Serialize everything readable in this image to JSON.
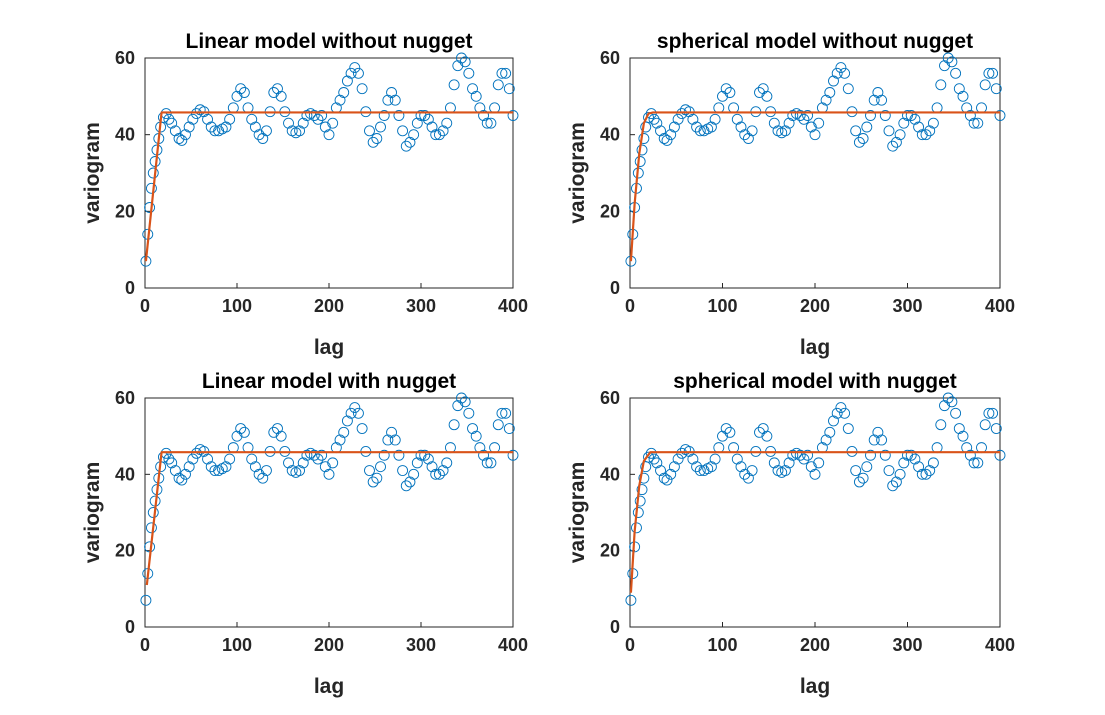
{
  "chart_data": [
    {
      "type": "scatter",
      "title": "Linear model without nugget",
      "xlabel": "lag",
      "ylabel": "variogram",
      "xlim": [
        0,
        400
      ],
      "ylim": [
        0,
        60
      ],
      "xticks": [
        0,
        100,
        200,
        300,
        400
      ],
      "yticks": [
        0,
        20,
        40,
        60
      ],
      "series": [
        {
          "type": "scatter",
          "color": "#0072BD",
          "x": [
            1,
            3,
            5,
            7,
            9,
            11,
            13,
            15,
            17,
            20,
            23,
            26,
            29,
            33,
            37,
            40,
            44,
            48,
            52,
            56,
            60,
            64,
            68,
            72,
            76,
            80,
            84,
            88,
            92,
            96,
            100,
            104,
            108,
            112,
            116,
            120,
            124,
            128,
            132,
            136,
            140,
            144,
            148,
            152,
            156,
            160,
            164,
            168,
            172,
            176,
            180,
            184,
            188,
            192,
            196,
            200,
            204,
            208,
            212,
            216,
            220,
            224,
            228,
            232,
            236,
            240,
            244,
            248,
            252,
            256,
            260,
            264,
            268,
            272,
            276,
            280,
            284,
            288,
            292,
            296,
            300,
            304,
            308,
            312,
            316,
            320,
            324,
            328,
            332,
            336,
            340,
            344,
            348,
            352,
            356,
            360,
            364,
            368,
            372,
            376,
            380,
            384,
            388,
            392,
            396,
            400
          ],
          "values": [
            7,
            14,
            21,
            26,
            30,
            33,
            36,
            39,
            42,
            44.5,
            45.5,
            44,
            43,
            41,
            39,
            38.5,
            40,
            42,
            44,
            45.5,
            46.5,
            46,
            44,
            42,
            41,
            41,
            41.5,
            42,
            44,
            47,
            50,
            52,
            51,
            47,
            44,
            42,
            40,
            39,
            41,
            46,
            51,
            52,
            50,
            46,
            43,
            41,
            40.5,
            41,
            43,
            45,
            45.5,
            45,
            44,
            45,
            42,
            40,
            43,
            47,
            49,
            51,
            54,
            56,
            57.5,
            56,
            52,
            46,
            41,
            38,
            39,
            42,
            45,
            49,
            51,
            49,
            45,
            41,
            37,
            38,
            40,
            43,
            45,
            45,
            44,
            42,
            40,
            40,
            41,
            43,
            47,
            53,
            58,
            60,
            59,
            56,
            52,
            50,
            47,
            45,
            43,
            43,
            47,
            53,
            56,
            56,
            52,
            45
          ]
        },
        {
          "type": "line",
          "color": "#D95319",
          "x": [
            1,
            18,
            400
          ],
          "values": [
            7,
            45.8,
            45.8
          ]
        }
      ]
    },
    {
      "type": "scatter",
      "title": "spherical model without nugget",
      "xlabel": "lag",
      "ylabel": "variogram",
      "xlim": [
        0,
        400
      ],
      "ylim": [
        0,
        60
      ],
      "xticks": [
        0,
        100,
        200,
        300,
        400
      ],
      "yticks": [
        0,
        20,
        40,
        60
      ],
      "series": [
        {
          "type": "scatter",
          "color": "#0072BD",
          "x": [
            1,
            3,
            5,
            7,
            9,
            11,
            13,
            15,
            17,
            20,
            23,
            26,
            29,
            33,
            37,
            40,
            44,
            48,
            52,
            56,
            60,
            64,
            68,
            72,
            76,
            80,
            84,
            88,
            92,
            96,
            100,
            104,
            108,
            112,
            116,
            120,
            124,
            128,
            132,
            136,
            140,
            144,
            148,
            152,
            156,
            160,
            164,
            168,
            172,
            176,
            180,
            184,
            188,
            192,
            196,
            200,
            204,
            208,
            212,
            216,
            220,
            224,
            228,
            232,
            236,
            240,
            244,
            248,
            252,
            256,
            260,
            264,
            268,
            272,
            276,
            280,
            284,
            288,
            292,
            296,
            300,
            304,
            308,
            312,
            316,
            320,
            324,
            328,
            332,
            336,
            340,
            344,
            348,
            352,
            356,
            360,
            364,
            368,
            372,
            376,
            380,
            384,
            388,
            392,
            396,
            400
          ],
          "values": [
            7,
            14,
            21,
            26,
            30,
            33,
            36,
            39,
            42,
            44.5,
            45.5,
            44,
            43,
            41,
            39,
            38.5,
            40,
            42,
            44,
            45.5,
            46.5,
            46,
            44,
            42,
            41,
            41,
            41.5,
            42,
            44,
            47,
            50,
            52,
            51,
            47,
            44,
            42,
            40,
            39,
            41,
            46,
            51,
            52,
            50,
            46,
            43,
            41,
            40.5,
            41,
            43,
            45,
            45.5,
            45,
            44,
            45,
            42,
            40,
            43,
            47,
            49,
            51,
            54,
            56,
            57.5,
            56,
            52,
            46,
            41,
            38,
            39,
            42,
            45,
            49,
            51,
            49,
            45,
            41,
            37,
            38,
            40,
            43,
            45,
            45,
            44,
            42,
            40,
            40,
            41,
            43,
            47,
            53,
            58,
            60,
            59,
            56,
            52,
            50,
            47,
            45,
            43,
            43,
            47,
            53,
            56,
            56,
            52,
            45
          ]
        },
        {
          "type": "line",
          "color": "#D95319",
          "x": [
            1,
            5,
            10,
            15,
            20,
            25,
            400
          ],
          "values": [
            7,
            22,
            35,
            43,
            45.5,
            45.8,
            45.8
          ]
        }
      ]
    },
    {
      "type": "scatter",
      "title": "Linear model with nugget",
      "xlabel": "lag",
      "ylabel": "variogram",
      "xlim": [
        0,
        400
      ],
      "ylim": [
        0,
        60
      ],
      "xticks": [
        0,
        100,
        200,
        300,
        400
      ],
      "yticks": [
        0,
        20,
        40,
        60
      ],
      "series": [
        {
          "type": "scatter",
          "color": "#0072BD",
          "x": [
            1,
            3,
            5,
            7,
            9,
            11,
            13,
            15,
            17,
            20,
            23,
            26,
            29,
            33,
            37,
            40,
            44,
            48,
            52,
            56,
            60,
            64,
            68,
            72,
            76,
            80,
            84,
            88,
            92,
            96,
            100,
            104,
            108,
            112,
            116,
            120,
            124,
            128,
            132,
            136,
            140,
            144,
            148,
            152,
            156,
            160,
            164,
            168,
            172,
            176,
            180,
            184,
            188,
            192,
            196,
            200,
            204,
            208,
            212,
            216,
            220,
            224,
            228,
            232,
            236,
            240,
            244,
            248,
            252,
            256,
            260,
            264,
            268,
            272,
            276,
            280,
            284,
            288,
            292,
            296,
            300,
            304,
            308,
            312,
            316,
            320,
            324,
            328,
            332,
            336,
            340,
            344,
            348,
            352,
            356,
            360,
            364,
            368,
            372,
            376,
            380,
            384,
            388,
            392,
            396,
            400
          ],
          "values": [
            7,
            14,
            21,
            26,
            30,
            33,
            36,
            39,
            42,
            44.5,
            45.5,
            44,
            43,
            41,
            39,
            38.5,
            40,
            42,
            44,
            45.5,
            46.5,
            46,
            44,
            42,
            41,
            41,
            41.5,
            42,
            44,
            47,
            50,
            52,
            51,
            47,
            44,
            42,
            40,
            39,
            41,
            46,
            51,
            52,
            50,
            46,
            43,
            41,
            40.5,
            41,
            43,
            45,
            45.5,
            45,
            44,
            45,
            42,
            40,
            43,
            47,
            49,
            51,
            54,
            56,
            57.5,
            56,
            52,
            46,
            41,
            38,
            39,
            42,
            45,
            49,
            51,
            49,
            45,
            41,
            37,
            38,
            40,
            43,
            45,
            45,
            44,
            42,
            40,
            40,
            41,
            43,
            47,
            53,
            58,
            60,
            59,
            56,
            52,
            50,
            47,
            45,
            43,
            43,
            47,
            53,
            56,
            56,
            52,
            45
          ]
        },
        {
          "type": "line",
          "color": "#D95319",
          "x": [
            2,
            18,
            400
          ],
          "values": [
            11,
            45.8,
            45.8
          ]
        }
      ]
    },
    {
      "type": "scatter",
      "title": "spherical model with nugget",
      "xlabel": "lag",
      "ylabel": "variogram",
      "xlim": [
        0,
        400
      ],
      "ylim": [
        0,
        60
      ],
      "xticks": [
        0,
        100,
        200,
        300,
        400
      ],
      "yticks": [
        0,
        20,
        40,
        60
      ],
      "series": [
        {
          "type": "scatter",
          "color": "#0072BD",
          "x": [
            1,
            3,
            5,
            7,
            9,
            11,
            13,
            15,
            17,
            20,
            23,
            26,
            29,
            33,
            37,
            40,
            44,
            48,
            52,
            56,
            60,
            64,
            68,
            72,
            76,
            80,
            84,
            88,
            92,
            96,
            100,
            104,
            108,
            112,
            116,
            120,
            124,
            128,
            132,
            136,
            140,
            144,
            148,
            152,
            156,
            160,
            164,
            168,
            172,
            176,
            180,
            184,
            188,
            192,
            196,
            200,
            204,
            208,
            212,
            216,
            220,
            224,
            228,
            232,
            236,
            240,
            244,
            248,
            252,
            256,
            260,
            264,
            268,
            272,
            276,
            280,
            284,
            288,
            292,
            296,
            300,
            304,
            308,
            312,
            316,
            320,
            324,
            328,
            332,
            336,
            340,
            344,
            348,
            352,
            356,
            360,
            364,
            368,
            372,
            376,
            380,
            384,
            388,
            392,
            396,
            400
          ],
          "values": [
            7,
            14,
            21,
            26,
            30,
            33,
            36,
            39,
            42,
            44.5,
            45.5,
            44,
            43,
            41,
            39,
            38.5,
            40,
            42,
            44,
            45.5,
            46.5,
            46,
            44,
            42,
            41,
            41,
            41.5,
            42,
            44,
            47,
            50,
            52,
            51,
            47,
            44,
            42,
            40,
            39,
            41,
            46,
            51,
            52,
            50,
            46,
            43,
            41,
            40.5,
            41,
            43,
            45,
            45.5,
            45,
            44,
            45,
            42,
            40,
            43,
            47,
            49,
            51,
            54,
            56,
            57.5,
            56,
            52,
            46,
            41,
            38,
            39,
            42,
            45,
            49,
            51,
            49,
            45,
            41,
            37,
            38,
            40,
            43,
            45,
            45,
            44,
            42,
            40,
            40,
            41,
            43,
            47,
            53,
            58,
            60,
            59,
            56,
            52,
            50,
            47,
            45,
            43,
            43,
            47,
            53,
            56,
            56,
            52,
            45
          ]
        },
        {
          "type": "line",
          "color": "#D95319",
          "x": [
            1,
            5,
            10,
            15,
            22,
            400
          ],
          "values": [
            9,
            25,
            37,
            43.5,
            45.8,
            45.8
          ]
        }
      ]
    }
  ]
}
